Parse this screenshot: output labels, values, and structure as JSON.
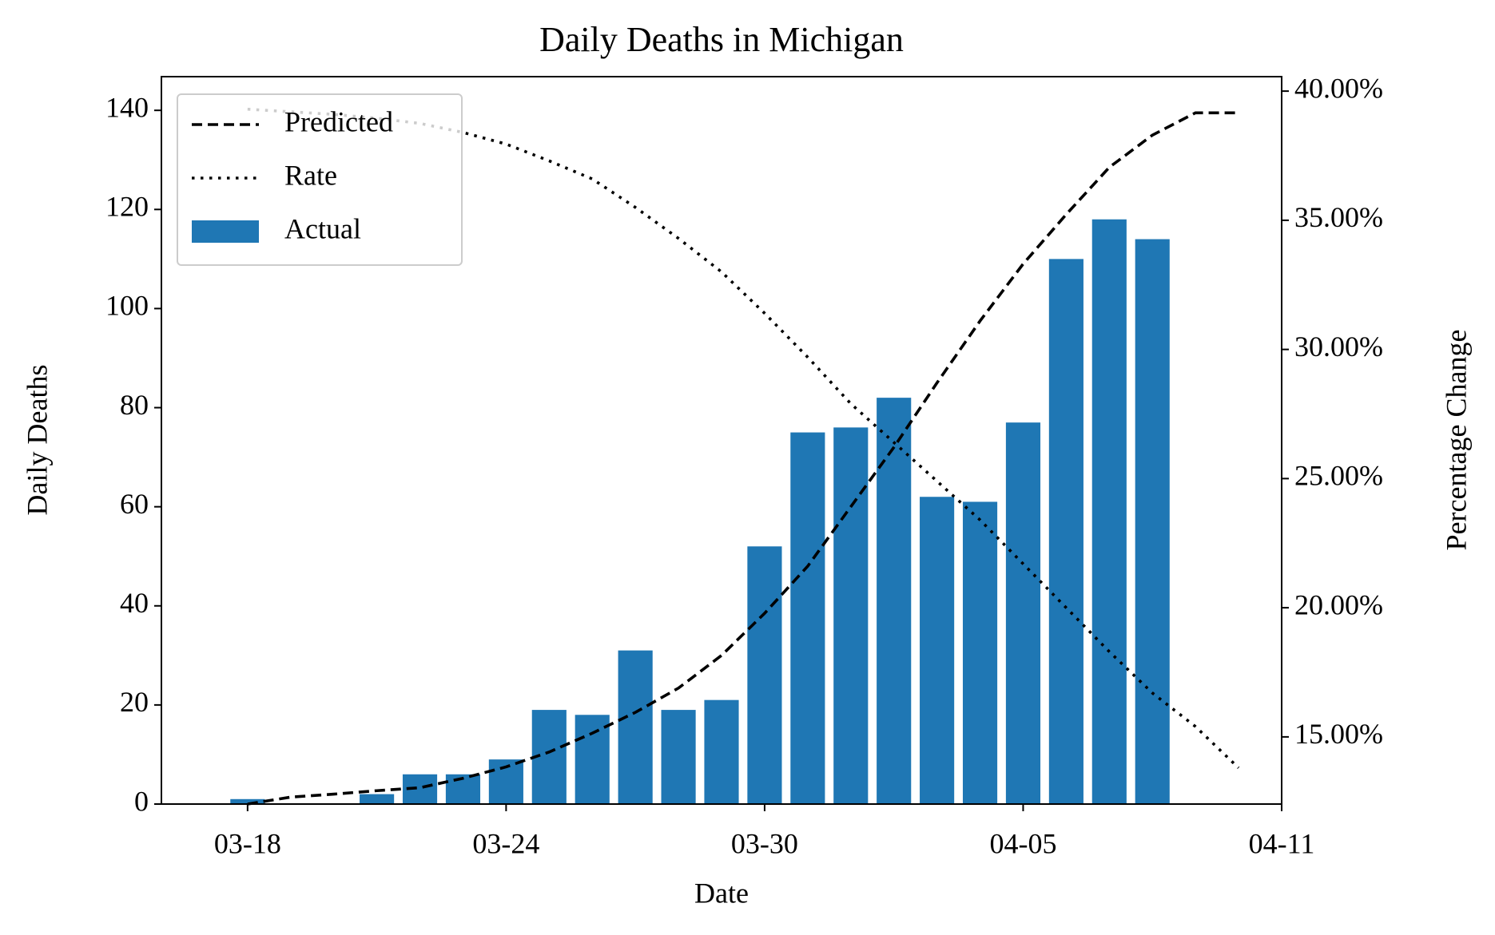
{
  "chart_data": {
    "type": "bar-line",
    "title": "Daily Deaths in Michigan",
    "x_label": "Date",
    "y_label": "Daily Deaths",
    "y2_label": "Percentage Change",
    "x": [
      "03-18",
      "03-19",
      "03-20",
      "03-21",
      "03-22",
      "03-23",
      "03-24",
      "03-25",
      "03-26",
      "03-27",
      "03-28",
      "03-29",
      "03-30",
      "03-31",
      "04-01",
      "04-02",
      "04-03",
      "04-04",
      "04-05",
      "04-06",
      "04-07",
      "04-08",
      "04-09",
      "04-10"
    ],
    "xlim": [
      "03-16",
      "04-11"
    ],
    "xticks": [
      "03-18",
      "03-24",
      "03-30",
      "04-05",
      "04-11"
    ],
    "ylim": [
      0,
      146.8
    ],
    "yticks": [
      0,
      20,
      40,
      60,
      80,
      100,
      120,
      140
    ],
    "y2lim": [
      12.4,
      40.56
    ],
    "y2ticks": [
      {
        "value": 15,
        "label": "15.00%"
      },
      {
        "value": 20,
        "label": "20.00%"
      },
      {
        "value": 25,
        "label": "25.00%"
      },
      {
        "value": 30,
        "label": "30.00%"
      },
      {
        "value": 35,
        "label": "35.00%"
      },
      {
        "value": 40,
        "label": "40.00%"
      }
    ],
    "legend": "upper left",
    "series": [
      {
        "name": "Predicted",
        "type": "line",
        "style": "dashed",
        "color": "#000000",
        "values": [
          0,
          1.4,
          2,
          2.7,
          3.3,
          5.2,
          7.5,
          10.5,
          14.3,
          18.5,
          23.4,
          30,
          38.5,
          48,
          60,
          72,
          85,
          97.5,
          109,
          119,
          128.5,
          135,
          139.5,
          139.5
        ]
      },
      {
        "name": "Rate",
        "type": "line",
        "style": "dotted",
        "color": "#000000",
        "axis": "y2",
        "values": [
          39.3,
          39.2,
          39.1,
          38.95,
          38.75,
          38.4,
          37.95,
          37.3,
          36.6,
          35.5,
          34.3,
          33.0,
          31.4,
          29.7,
          27.9,
          26.4,
          24.9,
          23.4,
          21.7,
          20.0,
          18.3,
          16.7,
          15.4,
          13.8
        ]
      },
      {
        "name": "Actual",
        "type": "bar",
        "color": "#1f77b4",
        "values": [
          1,
          0,
          0,
          2,
          6,
          6,
          9,
          19,
          18,
          31,
          19,
          21,
          52,
          75,
          76,
          82,
          62,
          61,
          77,
          110,
          118,
          114,
          null,
          null
        ]
      }
    ]
  }
}
